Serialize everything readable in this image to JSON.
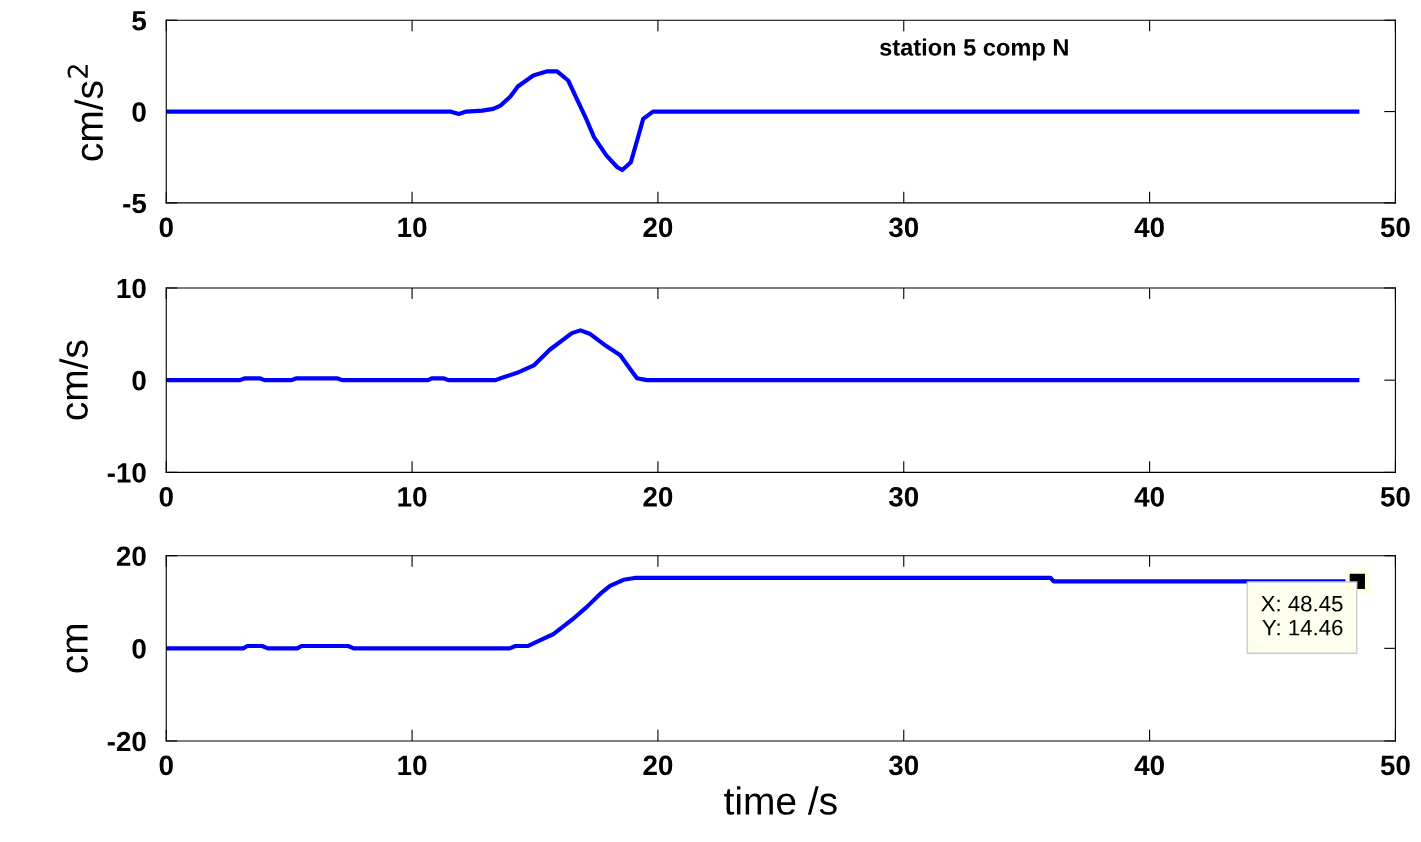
{
  "chart_data": [
    {
      "type": "line",
      "ylabel": "cm/s$^{2}$",
      "annotations": [
        "station 5 comp N"
      ],
      "xlim": [
        0,
        50
      ],
      "xticks": [
        0,
        10,
        20,
        30,
        40,
        50
      ],
      "ylim": [
        -5,
        5
      ],
      "yticks": [
        -5,
        0,
        5
      ],
      "grid": false,
      "line_style": "solid",
      "marker": "none",
      "series": [
        {
          "color": "#0000ff",
          "x": [
            0,
            11.55,
            11.9,
            12.2,
            12.85,
            13.3,
            13.6,
            14.0,
            14.3,
            14.93,
            15.5,
            15.9,
            16.35,
            16.7,
            17.05,
            17.4,
            17.9,
            18.35,
            18.55,
            18.9,
            19.15,
            19.4,
            19.8,
            48.45
          ],
          "values": [
            0,
            0,
            -0.13,
            0,
            0.05,
            0.15,
            0.33,
            0.82,
            1.37,
            1.97,
            2.2,
            2.2,
            1.7,
            0.7,
            -0.3,
            -1.4,
            -2.4,
            -3.05,
            -3.2,
            -2.77,
            -1.6,
            -0.4,
            0,
            0
          ]
        }
      ]
    },
    {
      "type": "line",
      "ylabel": "cm/s",
      "xlim": [
        0,
        50
      ],
      "xticks": [
        0,
        10,
        20,
        30,
        40,
        50
      ],
      "ylim": [
        -10,
        10
      ],
      "yticks": [
        -10,
        0,
        10
      ],
      "grid": false,
      "line_style": "solid",
      "marker": "none",
      "series": [
        {
          "color": "#0000ff",
          "x": [
            0,
            3.0,
            3.2,
            3.8,
            4.0,
            5.1,
            5.3,
            6.95,
            7.15,
            10.65,
            10.8,
            11.27,
            11.5,
            13.4,
            13.6,
            14.27,
            14.95,
            15.6,
            16.5,
            16.85,
            17.25,
            17.9,
            18.47,
            18.9,
            19.15,
            19.55,
            48.45
          ],
          "values": [
            0,
            0,
            0.2,
            0.2,
            0,
            0,
            0.2,
            0.2,
            0,
            0,
            0.2,
            0.2,
            0,
            0,
            0.2,
            0.8,
            1.6,
            3.3,
            5.1,
            5.4,
            5.0,
            3.7,
            2.7,
            1.1,
            0.2,
            0,
            0
          ]
        }
      ]
    },
    {
      "type": "line",
      "ylabel": "cm",
      "xlabel": "time /s",
      "annotations": [
        {
          "text": "X: 48.45\nY: 14.46",
          "x": 48.45,
          "y": 14.46
        }
      ],
      "xlim": [
        0,
        50
      ],
      "xticks": [
        0,
        10,
        20,
        30,
        40,
        50
      ],
      "ylim": [
        -20,
        20
      ],
      "yticks": [
        -20,
        0,
        20
      ],
      "grid": false,
      "line_style": "solid",
      "marker": "none",
      "series": [
        {
          "color": "#0000ff",
          "x": [
            0,
            3.13,
            3.3,
            3.9,
            4.13,
            5.33,
            5.5,
            7.4,
            7.62,
            13.97,
            14.2,
            14.7,
            15.35,
            15.76,
            16.6,
            17.1,
            17.7,
            18.05,
            18.6,
            19.05,
            35.97,
            36.1,
            48.45
          ],
          "values": [
            0,
            0,
            0.5,
            0.5,
            0,
            0,
            0.5,
            0.5,
            0,
            0,
            0.5,
            0.5,
            2.1,
            3.1,
            6.6,
            8.9,
            12.0,
            13.5,
            14.8,
            15.2,
            15.2,
            14.46,
            14.46
          ]
        }
      ]
    }
  ]
}
